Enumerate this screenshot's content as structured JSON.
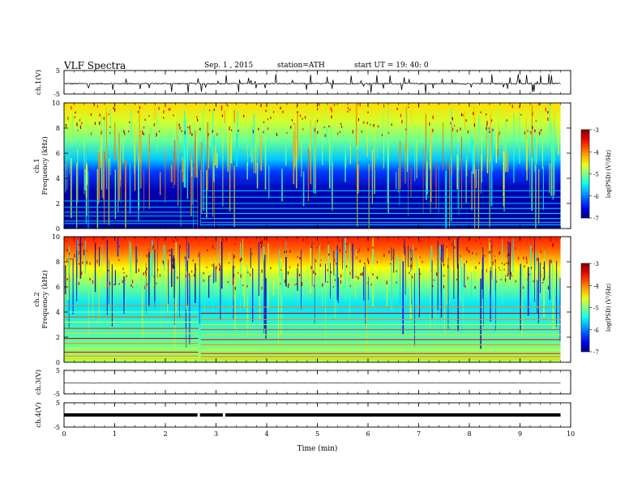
{
  "header": {
    "title": "VLF  Spectra",
    "date": "Sep. 1 , 2015",
    "station": "station=ATH",
    "start": "start  UT =   19: 40: 0"
  },
  "chart_data": {
    "type": "heatmap",
    "xlabel": "Time  (min)",
    "xlim": [
      0,
      10
    ],
    "xticks": [
      0,
      1,
      2,
      3,
      4,
      5,
      6,
      7,
      8,
      9,
      10
    ],
    "data_end_min": 9.8,
    "gap_min": 2.65,
    "panels": [
      {
        "kind": "line",
        "ylabel": "ch.1(V)",
        "ylim": [
          -5,
          5
        ],
        "ytick_labels": [
          "5",
          "-5"
        ],
        "baseline": -0.6,
        "noise": 0.25,
        "spikes": true
      },
      {
        "kind": "spectrogram",
        "ylabel": "ch.1\nFrequency (kHz)",
        "ylim": [
          0,
          10
        ],
        "yticks": [
          0,
          2,
          4,
          6,
          8,
          10
        ],
        "colorbar": {
          "label": "log(PSD) (V²/Hz)",
          "ticks": [
            "-3",
            "-4",
            "-5",
            "-6",
            "-7"
          ],
          "range": [
            -7,
            -3
          ]
        },
        "lines_before_gap_khz": [
          0.4,
          0.6,
          1.0,
          1.3,
          1.7,
          2.2
        ],
        "lines_after_gap_khz": [
          0.3,
          0.5,
          0.8,
          1.2,
          1.6,
          2.0,
          2.5,
          3.0
        ]
      },
      {
        "kind": "spectrogram",
        "ylabel": "ch.2\nFrequency (kHz)",
        "ylim": [
          0,
          10
        ],
        "yticks": [
          0,
          2,
          4,
          6,
          8,
          10
        ],
        "colorbar": {
          "label": "log(PSD) (V²/Hz)",
          "ticks": [
            "-3",
            "-4",
            "-5",
            "-6",
            "-7"
          ],
          "range": [
            -7,
            -3
          ]
        },
        "lines_before_gap_khz": [
          0.3,
          0.5,
          0.8,
          1.1,
          1.5,
          1.9,
          2.3,
          2.7,
          3.2,
          3.6,
          4.0,
          4.5
        ],
        "lines_after_gap_khz": [
          0.25,
          0.45,
          0.7,
          1.0,
          1.4,
          1.8,
          2.2,
          2.6,
          3.0,
          3.4,
          3.9,
          4.4
        ]
      },
      {
        "kind": "line",
        "ylabel": "ch.3(V)",
        "ylim": [
          -5,
          5
        ],
        "ytick_labels": [
          "5",
          "-5"
        ],
        "baseline": -0.4,
        "noise": 0.05,
        "spikes": false
      },
      {
        "kind": "line",
        "ylabel": "ch.4(V)",
        "ylim": [
          -5,
          5
        ],
        "ytick_labels": [
          "5",
          "-5"
        ],
        "baseline": 0,
        "noise": 0.0,
        "spikes": false,
        "thick": true,
        "gaps_min": [
          2.65,
          3.15
        ]
      }
    ]
  }
}
